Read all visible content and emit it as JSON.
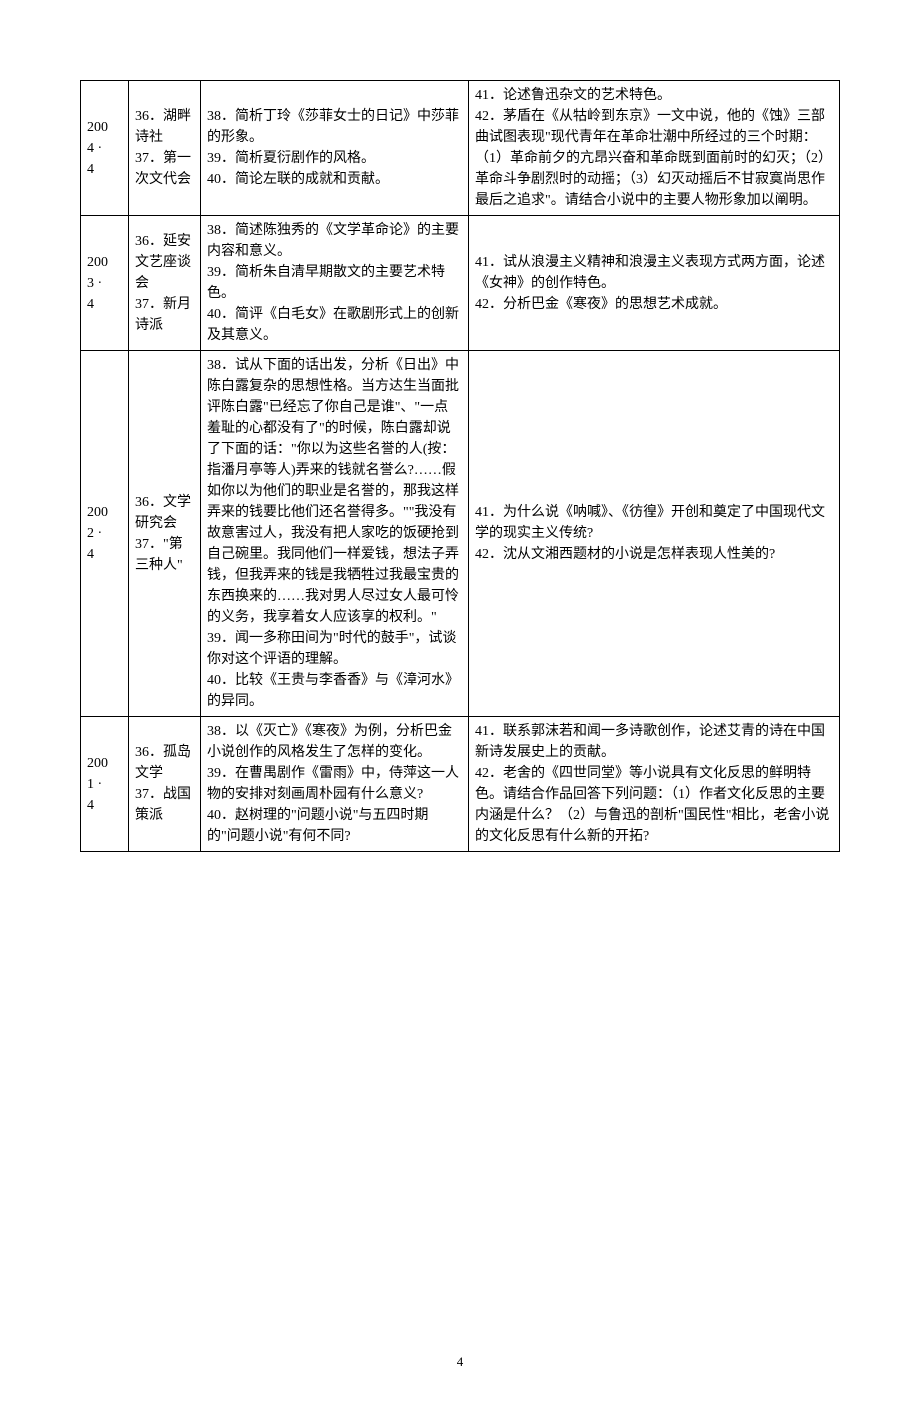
{
  "pageNumber": "4",
  "rows": [
    {
      "year": "2004 · 4",
      "terms": "36．湖畔诗社\n37．第一次文代会",
      "shortAnswers": [
        "38．简析丁玲《莎菲女士的日记》中莎菲的形象。",
        "39．简析夏衍剧作的风格。",
        "40．简论左联的成就和贡献。"
      ],
      "essays": [
        "41．论述鲁迅杂文的艺术特色。",
        "42．茅盾在《从牯岭到东京》一文中说，他的《蚀》三部曲试图表现\"现代青年在革命壮潮中所经过的三个时期：（1）革命前夕的亢昂兴奋和革命既到面前时的幻灭；（2）革命斗争剧烈时的动摇；（3）幻灭动摇后不甘寂寞尚思作最后之追求\"。请结合小说中的主要人物形象加以阐明。"
      ]
    },
    {
      "year": "2003 · 4",
      "terms": "36．延安文艺座谈会\n37．新月诗派",
      "shortAnswers": [
        "38．简述陈独秀的《文学革命论》的主要内容和意义。",
        "39．简析朱自清早期散文的主要艺术特色。",
        "40．简评《白毛女》在歌剧形式上的创新及其意义。"
      ],
      "essays": [
        "41．试从浪漫主义精神和浪漫主义表现方式两方面，论述《女神》的创作特色。",
        "42．分析巴金《寒夜》的思想艺术成就。"
      ]
    },
    {
      "year": "2002 · 4",
      "terms": "36．文学研究会\n37．\"第三种人\"",
      "shortAnswers": [
        "38．试从下面的话出发，分析《日出》中陈白露复杂的思想性格。当方达生当面批评陈白露\"已经忘了你自己是谁\"、\"一点羞耻的心都没有了\"的时候，陈白露却说了下面的话：\"你以为这些名誉的人(按：指潘月亭等人)弄来的钱就名誉么?……假如你以为他们的职业是名誉的，那我这样弄来的钱要比他们还名誉得多。\"\"我没有故意害过人，我没有把人家吃的饭硬抢到自己碗里。我同他们一样爱钱，想法子弄钱，但我弄来的钱是我牺牲过我最宝贵的东西换来的……我对男人尽过女人最可怜的义务，我享着女人应该享的权利。\"",
        "39．闻一多称田间为\"时代的鼓手\"，试谈你对这个评语的理解。",
        "40．比较《王贵与李香香》与《漳河水》的异同。"
      ],
      "essays": [
        "41．为什么说《呐喊》、《彷徨》开创和奠定了中国现代文学的现实主义传统?",
        "42．沈从文湘西题材的小说是怎样表现人性美的?"
      ]
    },
    {
      "year": "2001 · 4",
      "terms": "36．孤岛文学\n37．战国策派",
      "shortAnswers": [
        "38．以《灭亡》《寒夜》为例，分析巴金小说创作的风格发生了怎样的变化。",
        "39．在曹禺剧作《雷雨》中，侍萍这一人物的安排对刻画周朴园有什么意义?",
        "40．赵树理的\"问题小说\"与五四时期的\"问题小说\"有何不同?"
      ],
      "essays": [
        "41．联系郭沫若和闻一多诗歌创作，论述艾青的诗在中国新诗发展史上的贡献。",
        "42．老舍的《四世同堂》等小说具有文化反思的鲜明特色。请结合作品回答下列问题：（1）作者文化反思的主要内涵是什么？（2）与鲁迅的剖析\"国民性\"相比，老舍小说的文化反思有什么新的开拓?"
      ]
    }
  ]
}
